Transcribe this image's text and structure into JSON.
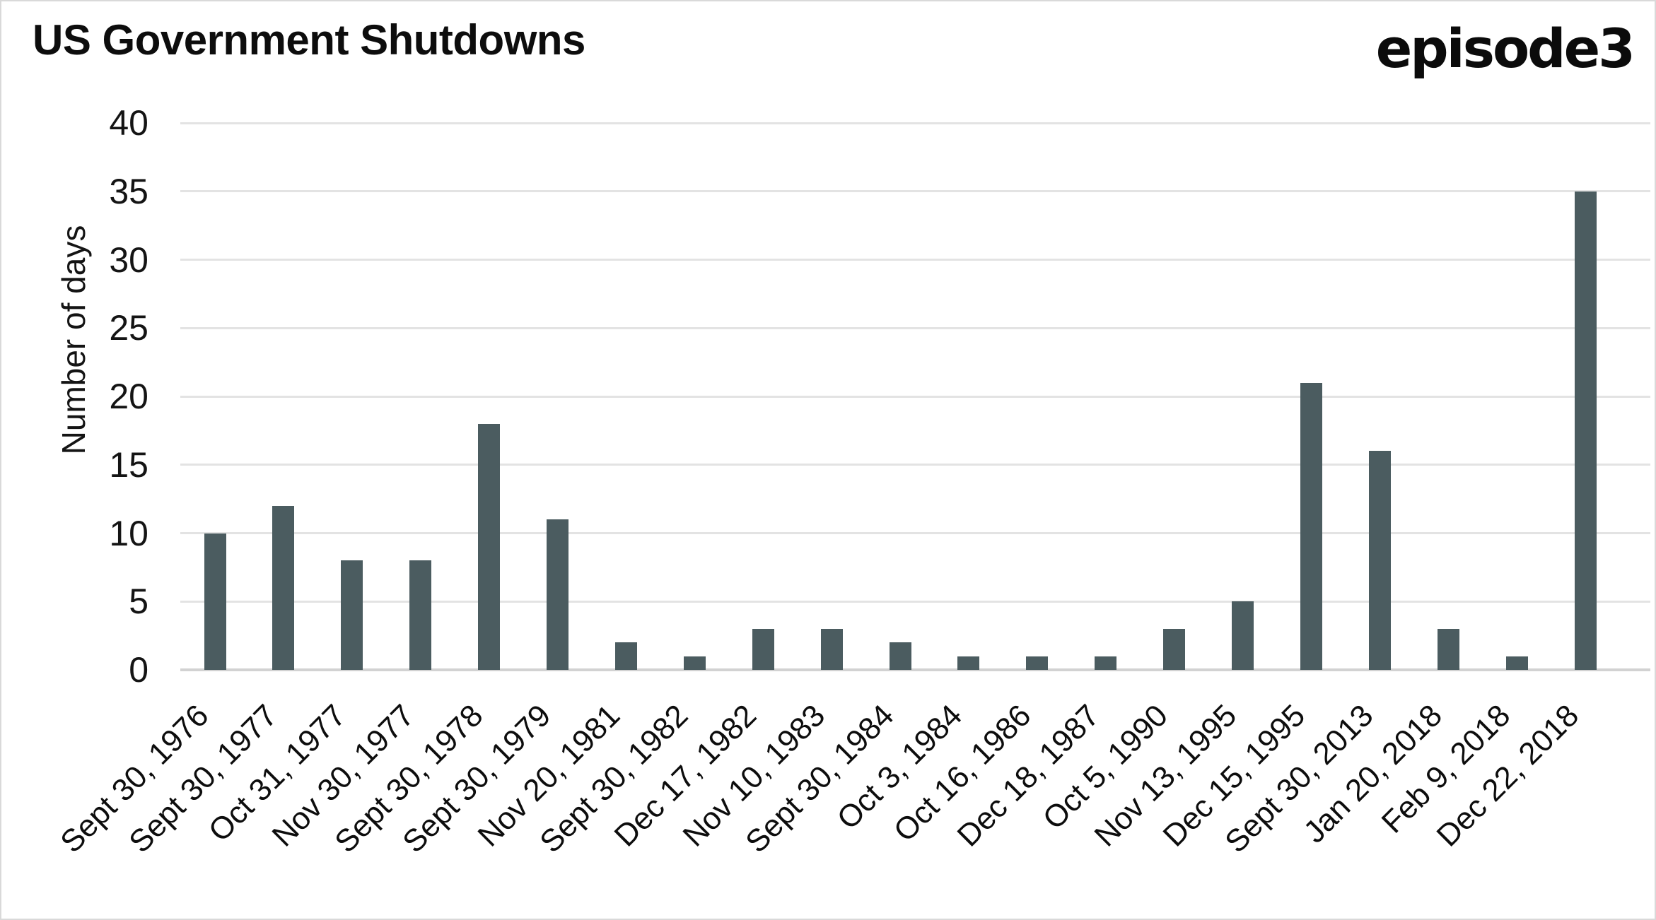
{
  "header": {
    "title": "US Government Shutdowns",
    "brand": "episode3"
  },
  "chart_data": {
    "type": "bar",
    "title": "US Government Shutdowns",
    "xlabel": "",
    "ylabel": "Number of days",
    "categories": [
      "Sept 30, 1976",
      "Sept 30, 1977",
      "Oct 31, 1977",
      "Nov 30, 1977",
      "Sept 30, 1978",
      "Sept 30, 1979",
      "Nov 20, 1981",
      "Sept 30, 1982",
      "Dec 17, 1982",
      "Nov 10, 1983",
      "Sept 30, 1984",
      "Oct 3, 1984",
      "Oct 16, 1986",
      "Dec 18, 1987",
      "Oct 5, 1990",
      "Nov 13, 1995",
      "Dec 15, 1995",
      "Sept 30, 2013",
      "Jan 20, 2018",
      "Feb 9, 2018",
      "Dec 22, 2018"
    ],
    "values": [
      10,
      12,
      8,
      8,
      18,
      11,
      2,
      1,
      3,
      3,
      2,
      1,
      1,
      1,
      3,
      5,
      21,
      16,
      3,
      1,
      35
    ],
    "ylim": [
      0,
      40
    ],
    "ytick_step": 5,
    "yticks": [
      0,
      5,
      10,
      15,
      20,
      25,
      30,
      35,
      40
    ],
    "grid": true,
    "legend": "none",
    "colors": {
      "bar": "#4b5c60",
      "gridline": "#e3e3e3",
      "axis_line": "#d2d2d2",
      "text": "#0d0d0d",
      "border": "#d9d9d9"
    }
  }
}
